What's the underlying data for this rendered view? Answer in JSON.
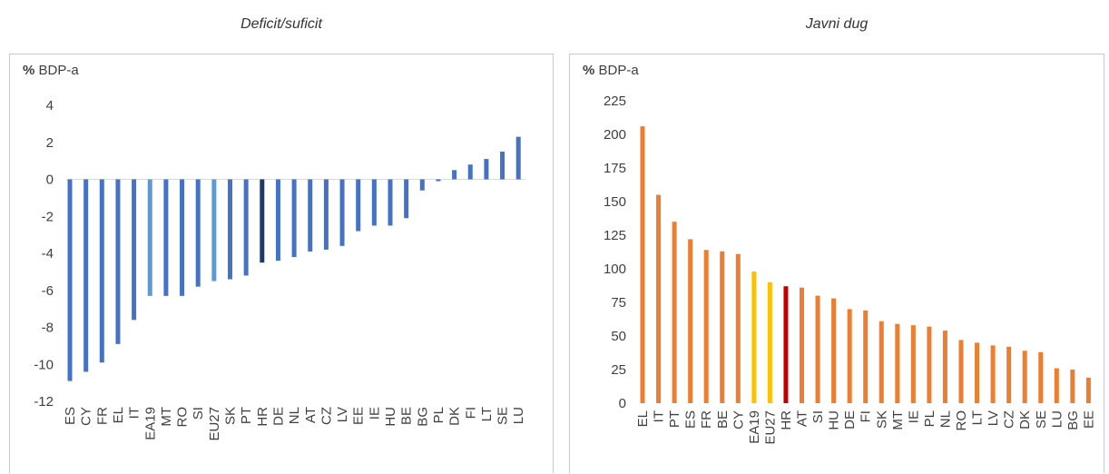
{
  "chart_data": [
    {
      "type": "bar",
      "title": "Deficit/suficit",
      "unit_prefix": "%",
      "unit_suffix": "BDP-a",
      "ylim": [
        -12,
        4
      ],
      "yticks": [
        4,
        2,
        0,
        -2,
        -4,
        -6,
        -8,
        -10,
        -12
      ],
      "grid": false,
      "categories": [
        "ES",
        "CY",
        "FR",
        "EL",
        "IT",
        "EA19",
        "MT",
        "RO",
        "SI",
        "EU27",
        "SK",
        "PT",
        "HR",
        "DE",
        "NL",
        "AT",
        "CZ",
        "LV",
        "EE",
        "IE",
        "HU",
        "BE",
        "BG",
        "PL",
        "DK",
        "FI",
        "LT",
        "SE",
        "LU"
      ],
      "values": [
        -10.9,
        -10.4,
        -9.9,
        -8.9,
        -7.6,
        -6.3,
        -6.3,
        -6.3,
        -5.8,
        -5.5,
        -5.4,
        -5.2,
        -4.5,
        -4.4,
        -4.2,
        -3.9,
        -3.8,
        -3.6,
        -2.8,
        -2.5,
        -2.5,
        -2.1,
        -0.6,
        -0.1,
        0.5,
        0.8,
        1.1,
        1.5,
        2.3
      ],
      "colors": {
        "default": "#4472C4",
        "aggregate": "#5B9BD5",
        "highlight": "#1F3864"
      },
      "color_roles": [
        "default",
        "default",
        "default",
        "default",
        "default",
        "aggregate",
        "default",
        "default",
        "default",
        "aggregate",
        "default",
        "default",
        "highlight",
        "default",
        "default",
        "default",
        "default",
        "default",
        "default",
        "default",
        "default",
        "default",
        "default",
        "default",
        "default",
        "default",
        "default",
        "default",
        "default"
      ]
    },
    {
      "type": "bar",
      "title": "Javni dug",
      "unit_prefix": "%",
      "unit_suffix": "BDP-a",
      "ylim": [
        0,
        225
      ],
      "yticks": [
        225,
        200,
        175,
        150,
        125,
        100,
        75,
        50,
        25,
        0
      ],
      "grid": false,
      "categories": [
        "EL",
        "IT",
        "PT",
        "ES",
        "FR",
        "BE",
        "CY",
        "EA19",
        "EU27",
        "HR",
        "AT",
        "SI",
        "HU",
        "DE",
        "FI",
        "SK",
        "MT",
        "IE",
        "PL",
        "NL",
        "RO",
        "LT",
        "LV",
        "CZ",
        "DK",
        "SE",
        "LU",
        "BG",
        "EE"
      ],
      "values": [
        206,
        155,
        135,
        122,
        114,
        113,
        111,
        98,
        90,
        87,
        86,
        80,
        78,
        70,
        69,
        61,
        59,
        58,
        57,
        54,
        47,
        45,
        43,
        42,
        39,
        38,
        26,
        25,
        19
      ],
      "colors": {
        "default": "#ED7D31",
        "aggregate": "#FFC000",
        "highlight": "#C00000"
      },
      "color_roles": [
        "default",
        "default",
        "default",
        "default",
        "default",
        "default",
        "default",
        "aggregate",
        "aggregate",
        "highlight",
        "default",
        "default",
        "default",
        "default",
        "default",
        "default",
        "default",
        "default",
        "default",
        "default",
        "default",
        "default",
        "default",
        "default",
        "default",
        "default",
        "default",
        "default",
        "default"
      ]
    }
  ]
}
